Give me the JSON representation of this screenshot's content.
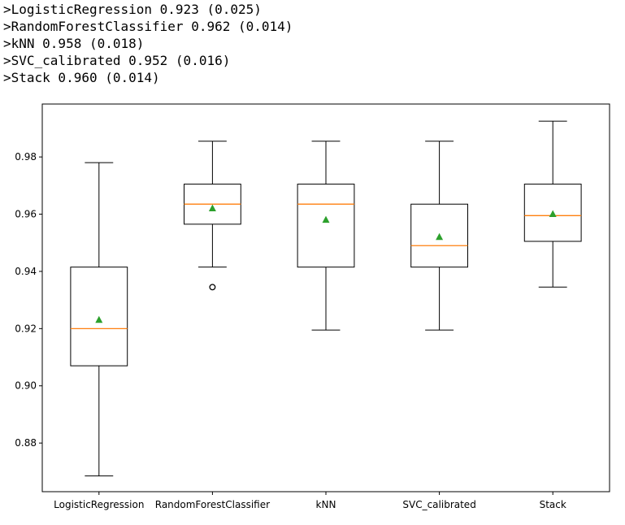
{
  "output_lines": [
    ">LogisticRegression 0.923 (0.025)",
    ">RandomForestClassifier 0.962 (0.014)",
    ">kNN 0.958 (0.018)",
    ">SVC_calibrated 0.952 (0.016)",
    ">Stack 0.960 (0.014)"
  ],
  "colors": {
    "box": "#000000",
    "median": "#ff7f0e",
    "mean": "#2ca02c",
    "outlier": "#000000"
  },
  "chart_data": {
    "type": "boxplot",
    "title": "",
    "xlabel": "",
    "ylabel": "",
    "ylim": [
      0.863,
      0.9985
    ],
    "yticks": [
      0.88,
      0.9,
      0.92,
      0.94,
      0.96,
      0.98
    ],
    "ytick_labels": [
      "0.88",
      "0.90",
      "0.92",
      "0.94",
      "0.96",
      "0.98"
    ],
    "grid": false,
    "categories": [
      "LogisticRegression",
      "RandomForestClassifier",
      "kNN",
      "SVC_calibrated",
      "Stack"
    ],
    "boxes": [
      {
        "whislo": 0.8685,
        "q1": 0.907,
        "med": 0.92,
        "q3": 0.9415,
        "whishi": 0.978,
        "mean": 0.923,
        "fliers": []
      },
      {
        "whislo": 0.9415,
        "q1": 0.9565,
        "med": 0.9635,
        "q3": 0.9705,
        "whishi": 0.9855,
        "mean": 0.962,
        "fliers": [
          0.9345
        ]
      },
      {
        "whislo": 0.9195,
        "q1": 0.9415,
        "med": 0.9635,
        "q3": 0.9705,
        "whishi": 0.9855,
        "mean": 0.958,
        "fliers": []
      },
      {
        "whislo": 0.9195,
        "q1": 0.9415,
        "med": 0.949,
        "q3": 0.9635,
        "whishi": 0.9855,
        "mean": 0.952,
        "fliers": []
      },
      {
        "whislo": 0.9345,
        "q1": 0.9505,
        "med": 0.9595,
        "q3": 0.9705,
        "whishi": 0.9925,
        "mean": 0.96,
        "fliers": []
      }
    ]
  }
}
